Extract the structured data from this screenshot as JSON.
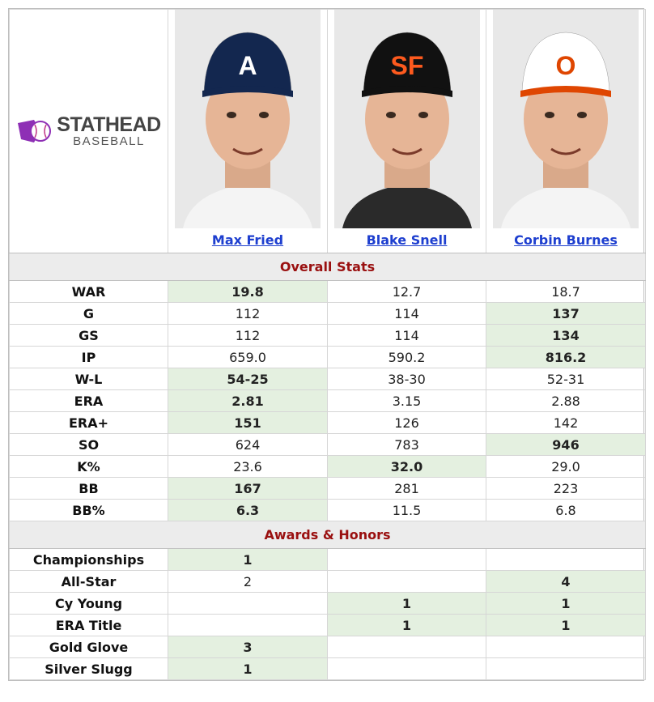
{
  "logo": {
    "line1": "STATHEAD",
    "line2": "BASEBALL",
    "color": "#8e2fb5"
  },
  "players": [
    {
      "name": "Max Fried",
      "cap": "navy-a-cap",
      "cap_color": "#13274f",
      "logo_letter": "A"
    },
    {
      "name": "Blake Snell",
      "cap": "black-sf-cap",
      "cap_color": "#111111",
      "logo_letter": "SF"
    },
    {
      "name": "Corbin Burnes",
      "cap": "orioles-cap",
      "cap_color": "#ffffff",
      "logo_letter": "O"
    }
  ],
  "sections": {
    "overall": "Overall Stats",
    "awards": "Awards & Honors"
  },
  "overall_rows": [
    {
      "label": "WAR",
      "values": [
        "19.8",
        "12.7",
        "18.7"
      ],
      "best": [
        true,
        false,
        false
      ]
    },
    {
      "label": "G",
      "values": [
        "112",
        "114",
        "137"
      ],
      "best": [
        false,
        false,
        true
      ]
    },
    {
      "label": "GS",
      "values": [
        "112",
        "114",
        "134"
      ],
      "best": [
        false,
        false,
        true
      ]
    },
    {
      "label": "IP",
      "values": [
        "659.0",
        "590.2",
        "816.2"
      ],
      "best": [
        false,
        false,
        true
      ]
    },
    {
      "label": "W-L",
      "values": [
        "54-25",
        "38-30",
        "52-31"
      ],
      "best": [
        true,
        false,
        false
      ]
    },
    {
      "label": "ERA",
      "values": [
        "2.81",
        "3.15",
        "2.88"
      ],
      "best": [
        true,
        false,
        false
      ]
    },
    {
      "label": "ERA+",
      "values": [
        "151",
        "126",
        "142"
      ],
      "best": [
        true,
        false,
        false
      ]
    },
    {
      "label": "SO",
      "values": [
        "624",
        "783",
        "946"
      ],
      "best": [
        false,
        false,
        true
      ]
    },
    {
      "label": "K%",
      "values": [
        "23.6",
        "32.0",
        "29.0"
      ],
      "best": [
        false,
        true,
        false
      ]
    },
    {
      "label": "BB",
      "values": [
        "167",
        "281",
        "223"
      ],
      "best": [
        true,
        false,
        false
      ]
    },
    {
      "label": "BB%",
      "values": [
        "6.3",
        "11.5",
        "6.8"
      ],
      "best": [
        true,
        false,
        false
      ]
    }
  ],
  "award_rows": [
    {
      "label": "Championships",
      "values": [
        "1",
        "",
        ""
      ],
      "best": [
        true,
        false,
        false
      ]
    },
    {
      "label": "All-Star",
      "values": [
        "2",
        "",
        "4"
      ],
      "best": [
        false,
        false,
        true
      ]
    },
    {
      "label": "Cy Young",
      "values": [
        "",
        "1",
        "1"
      ],
      "best": [
        false,
        true,
        true
      ]
    },
    {
      "label": "ERA Title",
      "values": [
        "",
        "1",
        "1"
      ],
      "best": [
        false,
        true,
        true
      ]
    },
    {
      "label": "Gold Glove",
      "values": [
        "3",
        "",
        ""
      ],
      "best": [
        true,
        false,
        false
      ]
    },
    {
      "label": "Silver Slugg",
      "values": [
        "1",
        "",
        ""
      ],
      "best": [
        true,
        false,
        false
      ]
    }
  ]
}
